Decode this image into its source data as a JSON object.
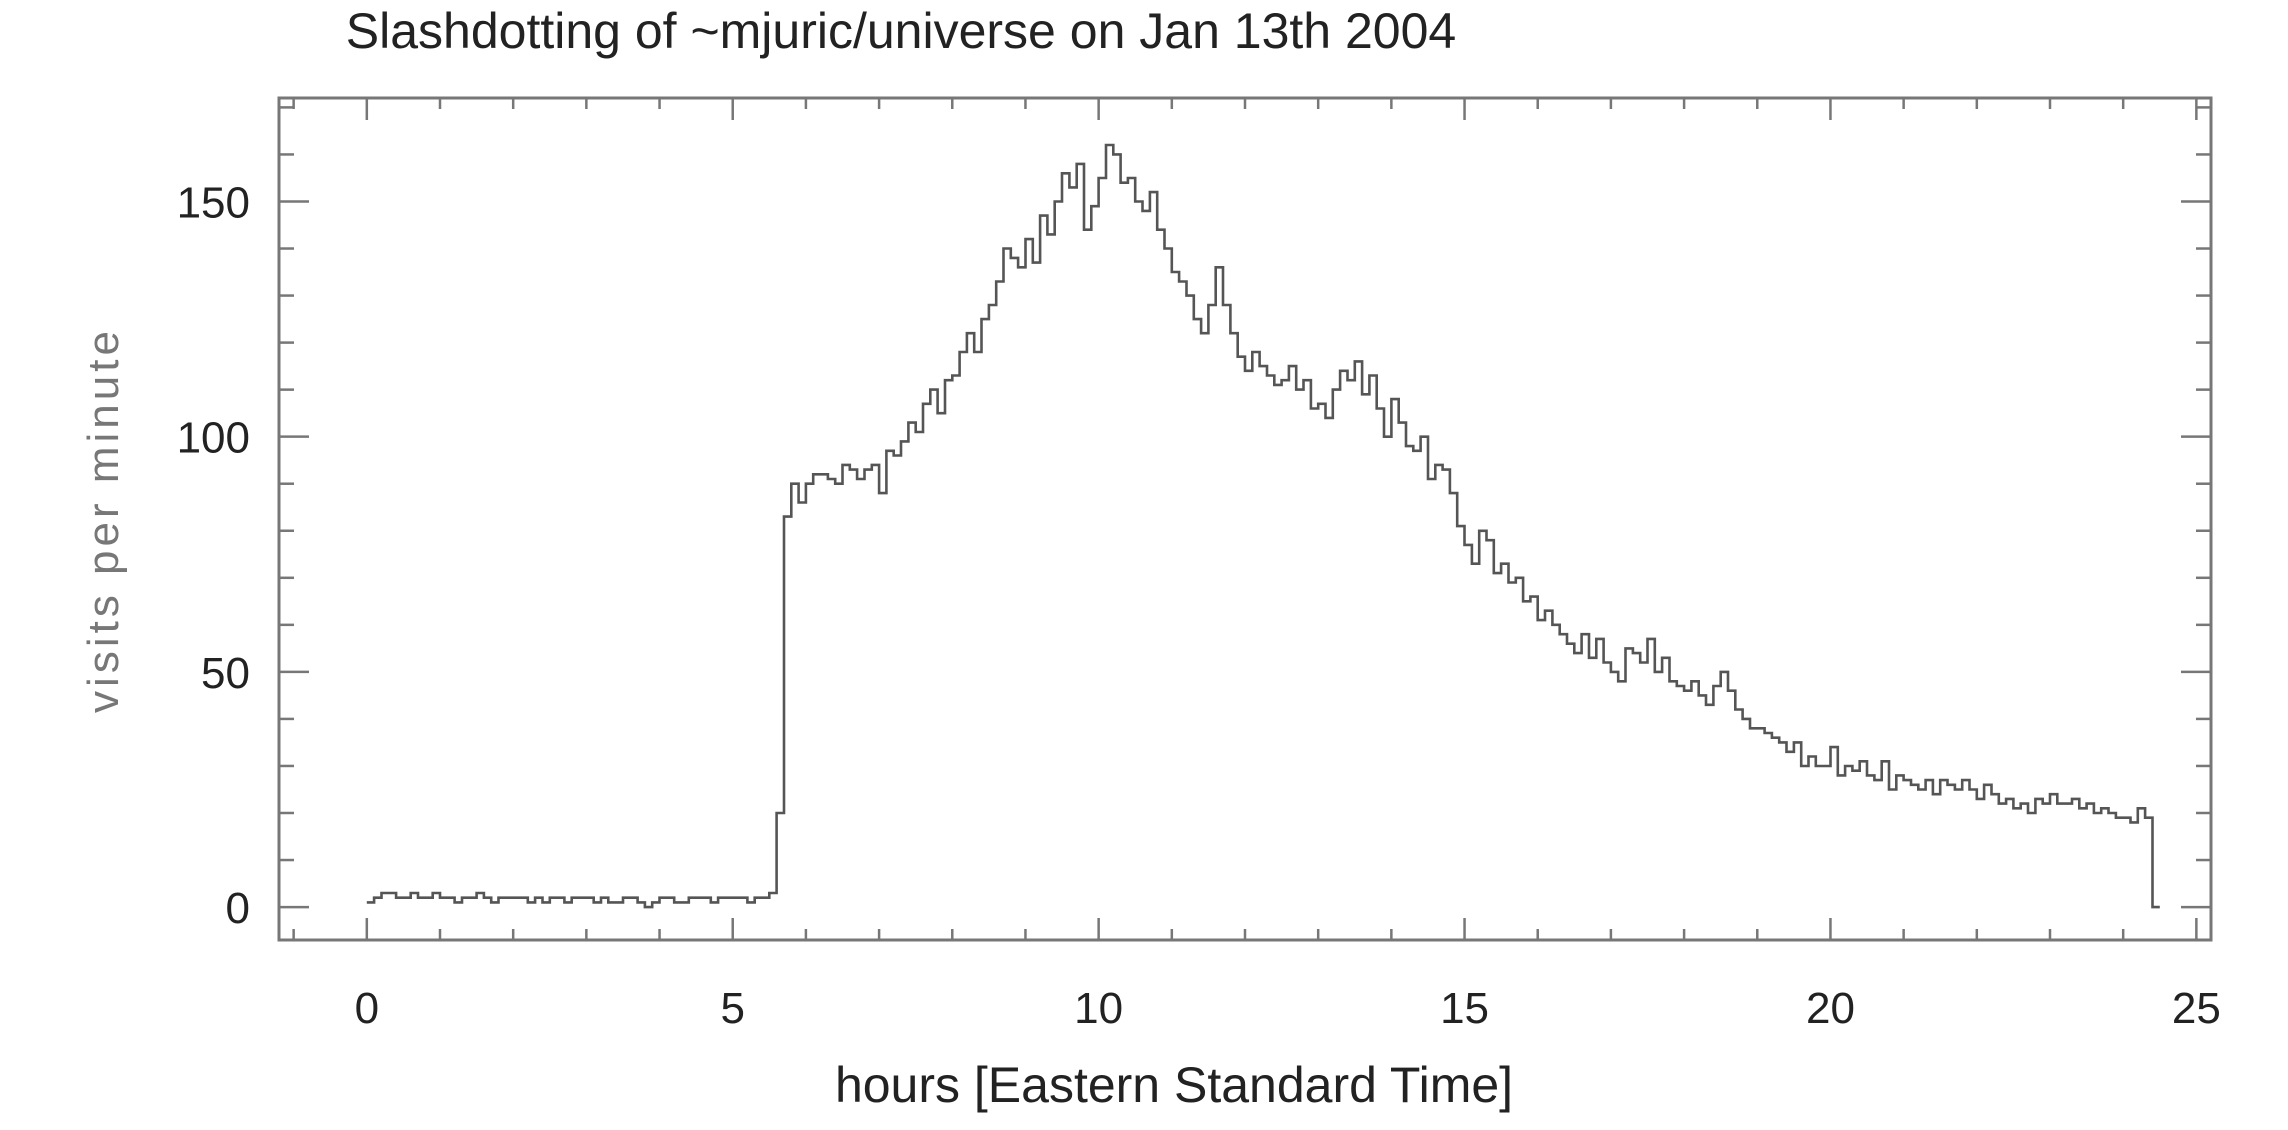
{
  "chart_data": {
    "type": "line",
    "style": "histogram-step",
    "title": "Slashdotting of ~mjuric/universe on Jan 13th 2004",
    "xlabel": "hours [Eastern Standard Time]",
    "ylabel": "visits per minute",
    "xlim": [
      -1.2,
      25.2
    ],
    "ylim": [
      -7,
      172
    ],
    "xticks": [
      0,
      5,
      10,
      15,
      20,
      25
    ],
    "xtick_labels": [
      "0",
      "5",
      "10",
      "15",
      "20",
      "25"
    ],
    "yticks": [
      0,
      50,
      100,
      150
    ],
    "ytick_labels": [
      "0",
      "50",
      "100",
      "150"
    ],
    "x_minor_step": 1,
    "y_minor_step": 10,
    "grid": false,
    "legend": "none",
    "bin_width_hours": 0.1,
    "x_start": 0,
    "series": [
      {
        "values": [
          1,
          2,
          3,
          3,
          2,
          2,
          3,
          2,
          2,
          3,
          2,
          2,
          1,
          2,
          2,
          3,
          2,
          1,
          2,
          2,
          2,
          2,
          1,
          2,
          1,
          2,
          2,
          1,
          2,
          2,
          2,
          1,
          2,
          1,
          1,
          2,
          2,
          1,
          0,
          1,
          2,
          2,
          1,
          1,
          2,
          2,
          2,
          1,
          2,
          2,
          2,
          2,
          1,
          2,
          2,
          3,
          20,
          83,
          90,
          86,
          90,
          92,
          92,
          91,
          90,
          94,
          93,
          91,
          93,
          94,
          88,
          97,
          96,
          99,
          103,
          101,
          107,
          110,
          105,
          112,
          113,
          118,
          122,
          118,
          125,
          128,
          133,
          140,
          138,
          136,
          142,
          137,
          147,
          143,
          150,
          156,
          153,
          158,
          144,
          149,
          155,
          162,
          160,
          154,
          155,
          150,
          148,
          152,
          144,
          140,
          135,
          133,
          130,
          125,
          122,
          128,
          136,
          128,
          122,
          117,
          114,
          118,
          115,
          113,
          111,
          112,
          115,
          110,
          112,
          106,
          107,
          104,
          110,
          114,
          112,
          116,
          109,
          113,
          106,
          100,
          108,
          103,
          98,
          97,
          100,
          91,
          94,
          93,
          88,
          81,
          77,
          73,
          80,
          78,
          71,
          73,
          69,
          70,
          65,
          66,
          61,
          63,
          60,
          58,
          56,
          54,
          58,
          53,
          57,
          52,
          50,
          48,
          55,
          54,
          52,
          57,
          50,
          53,
          48,
          47,
          46,
          48,
          45,
          43,
          47,
          50,
          46,
          42,
          40,
          38,
          38,
          37,
          36,
          35,
          33,
          35,
          30,
          32,
          30,
          30,
          34,
          28,
          30,
          29,
          31,
          28,
          27,
          31,
          25,
          28,
          27,
          26,
          25,
          27,
          24,
          27,
          26,
          25,
          27,
          25,
          23,
          26,
          24,
          22,
          23,
          21,
          22,
          20,
          23,
          22,
          24,
          22,
          22,
          23,
          21,
          22,
          20,
          21,
          20,
          19,
          19,
          18,
          21,
          19,
          0
        ]
      }
    ]
  }
}
